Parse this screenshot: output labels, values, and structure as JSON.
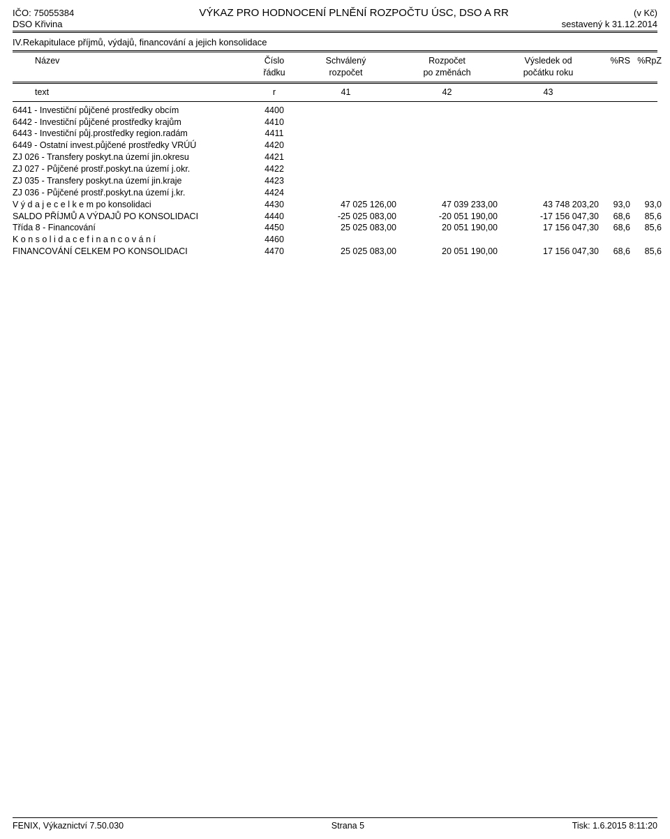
{
  "header": {
    "ico_label": "IČO:",
    "ico_value": "75055384",
    "title": "VÝKAZ PRO HODNOCENÍ PLNĚNÍ ROZPOČTU ÚSC, DSO A RR",
    "currency": "(v Kč)",
    "org": "DSO Křivina",
    "compiled": "sestavený k 31.12.2014"
  },
  "section_title": "IV.Rekapitulace příjmů, výdajů, financování a jejich konsolidace",
  "col_headers": {
    "name1": "Název",
    "name2": "",
    "num1": "Číslo",
    "num2": "řádku",
    "v1a": "Schválený",
    "v1b": "rozpočet",
    "v2a": "Rozpočet",
    "v2b": "po změnách",
    "v3a": "Výsledek od",
    "v3b": "počátku roku",
    "p1": "%RS",
    "p2": "%RpZ"
  },
  "subhead": {
    "text": "text",
    "r": "r",
    "c41": "41",
    "c42": "42",
    "c43": "43"
  },
  "rows": [
    {
      "name": "6441 - Investiční půjčené prostředky obcím",
      "num": "4400"
    },
    {
      "name": "6442 - Investiční půjčené prostředky krajům",
      "num": "4410"
    },
    {
      "name": "6443 - Investiční půj.prostředky region.radám",
      "num": "4411"
    },
    {
      "name": "6449 - Ostatní invest.půjčené prostředky VRÚÚ",
      "num": "4420"
    },
    {
      "name": "ZJ 026 - Transfery poskyt.na území jin.okresu",
      "num": "4421"
    },
    {
      "name": "ZJ 027 - Půjčené prostř.poskyt.na území j.okr.",
      "num": "4422"
    },
    {
      "name": "ZJ 035 - Transfery poskyt.na území jin.kraje",
      "num": "4423"
    },
    {
      "name": "ZJ 036 - Půjčené prostř.poskyt.na území j.kr.",
      "num": "4424"
    },
    {
      "name": "V ý d a j e  c e l k e m  po konsolidaci",
      "num": "4430",
      "v1": "47 025 126,00",
      "v2": "47 039 233,00",
      "v3": "43 748 203,20",
      "p1": "93,0",
      "p2": "93,0"
    },
    {
      "name": "SALDO PŘÍJMŮ A VÝDAJŮ PO KONSOLIDACI",
      "num": "4440",
      "v1": "-25 025 083,00",
      "v2": "-20 051 190,00",
      "v3": "-17 156 047,30",
      "p1": "68,6",
      "p2": "85,6"
    },
    {
      "name": "Třída 8 - Financování",
      "num": "4450",
      "v1": "25 025 083,00",
      "v2": "20 051 190,00",
      "v3": "17 156 047,30",
      "p1": "68,6",
      "p2": "85,6"
    },
    {
      "name": "K o n s o l i d a c e   f i n a n c o v á n í",
      "num": "4460"
    },
    {
      "name": "FINANCOVÁNÍ CELKEM PO KONSOLIDACI",
      "num": "4470",
      "v1": "25 025 083,00",
      "v2": "20 051 190,00",
      "v3": "17 156 047,30",
      "p1": "68,6",
      "p2": "85,6"
    }
  ],
  "footer": {
    "left": "FENIX, Výkaznictví 7.50.030",
    "center": "Strana 5",
    "right": "Tisk: 1.6.2015 8:11:20"
  }
}
